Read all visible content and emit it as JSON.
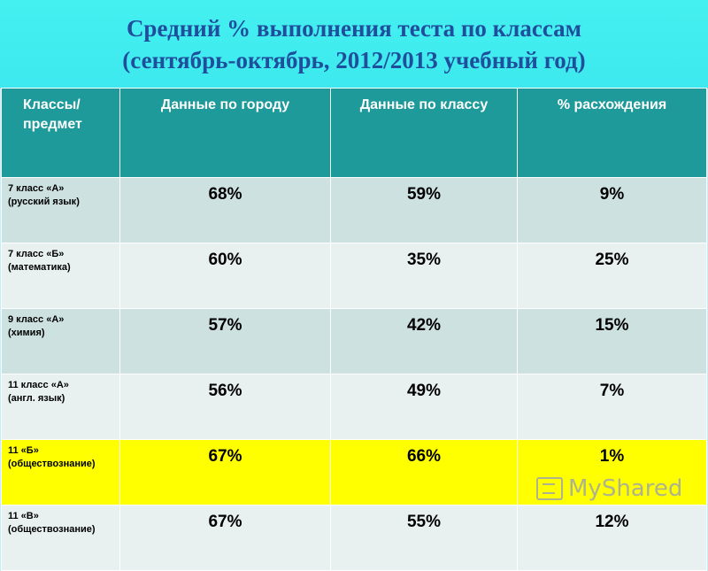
{
  "title": {
    "line1": "Средний % выполнения теста по классам",
    "line2": "(сентябрь-октябрь, 2012/2013 учебный год)"
  },
  "table": {
    "headers": {
      "col1_line1": "Классы/",
      "col1_line2": "предмет",
      "col2": "Данные по городу",
      "col3": "Данные по классу",
      "col4": "% расхождения"
    },
    "rows": [
      {
        "line1": "7 класс «А»",
        "line2": "(русский язык)",
        "city": "68%",
        "class": "59%",
        "diff": "9%"
      },
      {
        "line1": "7 класс «Б»",
        "line2": "(математика)",
        "city": "60%",
        "class": "35%",
        "diff": "25%"
      },
      {
        "line1": "9 класс «А»",
        "line2": "(химия)",
        "city": "57%",
        "class": "42%",
        "diff": "15%"
      },
      {
        "line1": "11 класс «А»",
        "line2": "(англ. язык)",
        "city": "56%",
        "class": "49%",
        "diff": "7%"
      },
      {
        "line1": "11 «Б»",
        "line2": "(обществознание)",
        "city": "67%",
        "class": "66%",
        "diff": "1%"
      },
      {
        "line1": "11 «В»",
        "line2": "(обществознание)",
        "city": "67%",
        "class": "55%",
        "diff": "12%"
      }
    ]
  },
  "watermark": {
    "text": "MyShared",
    "icon": "presentation-icon"
  },
  "colors": {
    "header_bg": "#1f9a9a",
    "highlight": "#ffff00",
    "title": "#1f4f9c"
  }
}
